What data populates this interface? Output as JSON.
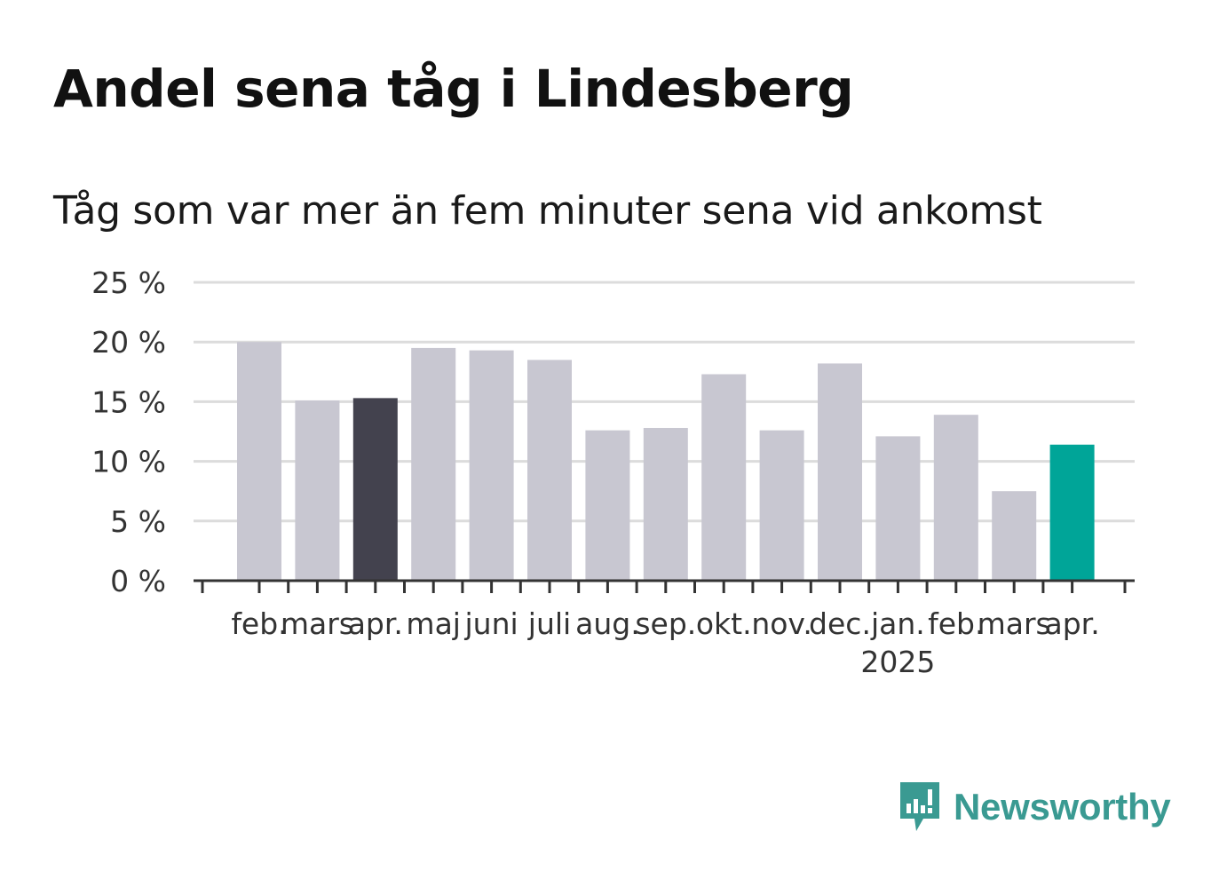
{
  "title": "Andel sena tåg i Lindesberg",
  "subtitle": "Tåg som var mer än fem minuter sena vid ankomst",
  "brand": {
    "name": "Newsworthy",
    "color": "#3a9a92",
    "icon": "newsworthy-logo-icon"
  },
  "chart_data": {
    "type": "bar",
    "categories": [
      "feb.",
      "mars",
      "apr.",
      "maj",
      "juni",
      "juli",
      "aug.",
      "sep.",
      "okt.",
      "nov.",
      "dec.",
      "jan.",
      "feb.",
      "mars",
      "apr."
    ],
    "year_labels": [
      {
        "index": 11,
        "label": "2025"
      }
    ],
    "values": [
      20.0,
      15.1,
      15.3,
      19.5,
      19.3,
      18.5,
      12.6,
      12.8,
      17.3,
      12.6,
      18.2,
      12.1,
      13.9,
      7.5,
      11.4
    ],
    "highlight": {
      "2": "#43424e",
      "14": "#00a598"
    },
    "default_color": "#c8c7d1",
    "yticks": [
      "0 %",
      "5 %",
      "10 %",
      "15 %",
      "20 %",
      "25 %"
    ],
    "ytick_values": [
      0,
      5,
      10,
      15,
      20,
      25
    ],
    "ylim": [
      0,
      25
    ],
    "grid": true,
    "xlabel": "",
    "ylabel": ""
  }
}
